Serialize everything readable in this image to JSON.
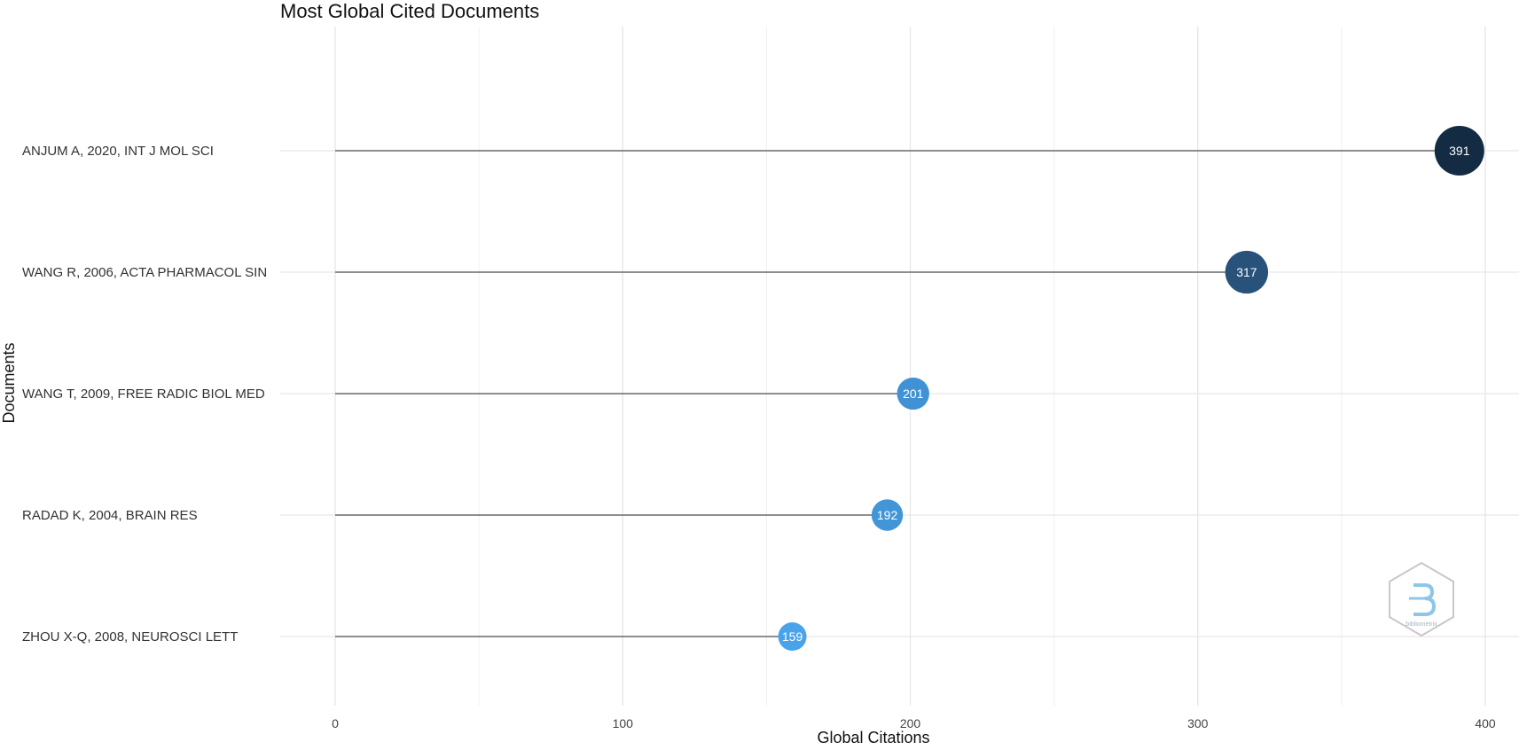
{
  "chart_data": {
    "type": "scatter",
    "title": "Most Global Cited Documents",
    "xlabel": "Global Citations",
    "ylabel": "Documents",
    "xlim": [
      0,
      400
    ],
    "xticks": [
      0,
      100,
      200,
      300,
      400
    ],
    "grid": true,
    "legend": "none",
    "points": [
      {
        "label": "ANJUM A, 2020, INT J MOL SCI",
        "value": 391,
        "color": "#132b43"
      },
      {
        "label": "WANG R, 2006, ACTA PHARMACOL SIN",
        "value": 317,
        "color": "#28527a"
      },
      {
        "label": "WANG T, 2009, FREE RADIC BIOL MED",
        "value": 201,
        "color": "#4192d4"
      },
      {
        "label": "RADAD K, 2004, BRAIN RES",
        "value": 192,
        "color": "#4296d8"
      },
      {
        "label": "ZHOU X-Q, 2008, NEUROSCI LETT",
        "value": 159,
        "color": "#4aa3ea"
      }
    ],
    "segment_color": "#6b6b6b"
  },
  "watermark": {
    "icon": "bibliometrix-logo-icon",
    "text": "bibliometrix"
  }
}
